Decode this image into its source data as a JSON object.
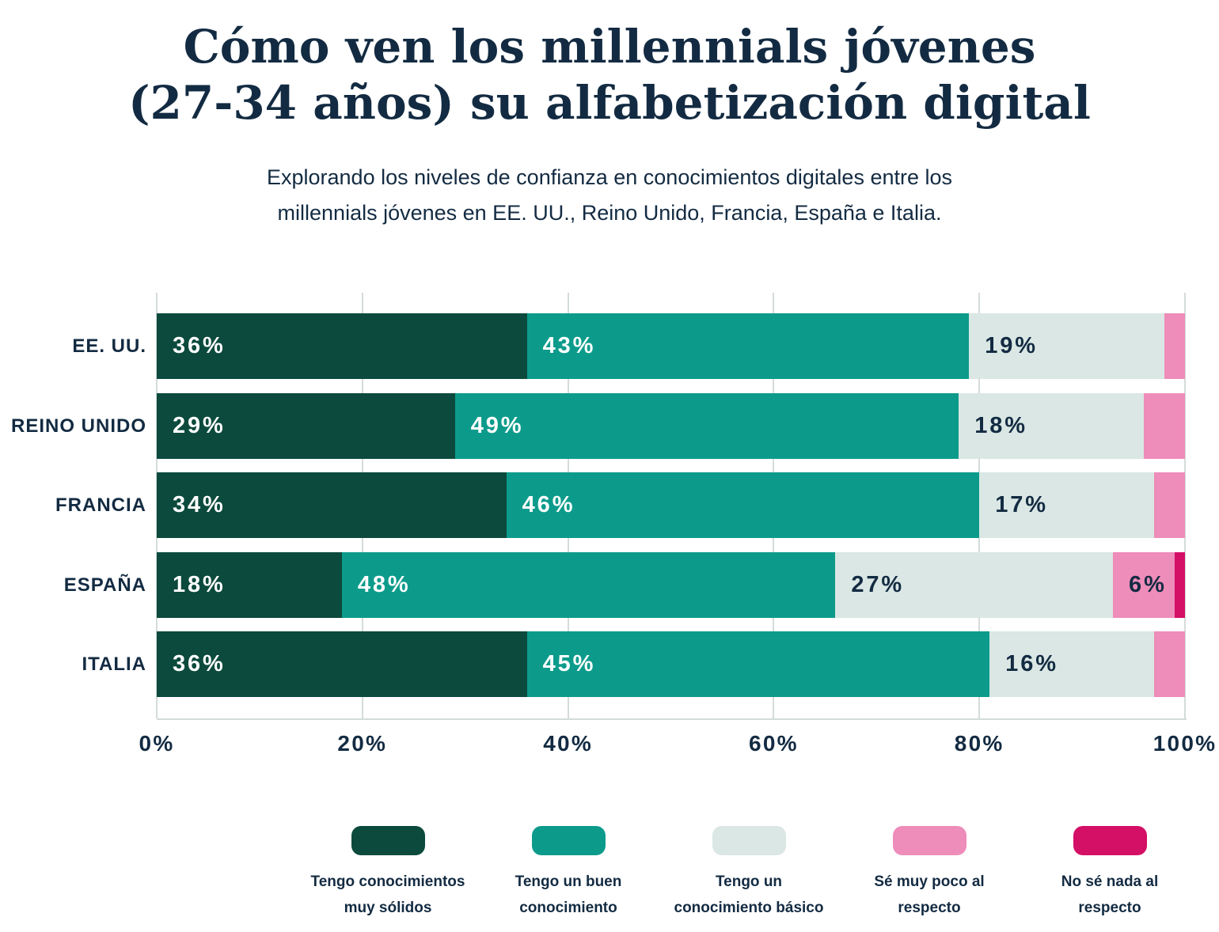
{
  "header": {
    "title_line1": "Cómo ven los millennials jóvenes",
    "title_line2": "(27-34 años) su alfabetización digital",
    "subtitle_line1": "Explorando los niveles de confianza en conocimientos digitales entre los",
    "subtitle_line2": "millennials jóvenes en EE. UU., Reino Unido, Francia, España e Italia."
  },
  "colors": {
    "background": "#ffffff",
    "text": "#132b42",
    "grid": "#d3dcd9",
    "series": [
      "#0b4a3c",
      "#0c9b8b",
      "#dae7e4",
      "#ee8cba",
      "#d40f66"
    ]
  },
  "chart_data": {
    "type": "bar",
    "orientation": "horizontal-stacked",
    "title": "Cómo ven los millennials jóvenes (27-34 años) su alfabetización digital",
    "subtitle": "Explorando los niveles de confianza en conocimientos digitales entre los millennials jóvenes en EE. UU., Reino Unido, Francia, España e Italia.",
    "categories": [
      "EE. UU.",
      "REINO UNIDO",
      "FRANCIA",
      "ESPAÑA",
      "ITALIA"
    ],
    "series": [
      {
        "name": "Tengo conocimientos muy sólidos",
        "color": "#0b4a3c",
        "label_color": "#ffffff",
        "values": [
          36,
          29,
          34,
          18,
          36
        ]
      },
      {
        "name": "Tengo un buen conocimiento",
        "color": "#0c9b8b",
        "label_color": "#ffffff",
        "values": [
          43,
          49,
          46,
          48,
          45
        ]
      },
      {
        "name": "Tengo un conocimiento básico",
        "color": "#dae7e4",
        "label_color": "#132b42",
        "values": [
          19,
          18,
          17,
          27,
          16
        ]
      },
      {
        "name": "Sé muy poco al respecto",
        "color": "#ee8cba",
        "label_color": "#132b42",
        "values": [
          2,
          4,
          3,
          6,
          3
        ]
      },
      {
        "name": "No sé nada al respecto",
        "color": "#d40f66",
        "label_color": "#ffffff",
        "values": [
          0,
          0,
          0,
          1,
          0
        ]
      }
    ],
    "x_ticks": [
      "0%",
      "20%",
      "40%",
      "60%",
      "80%",
      "100%"
    ],
    "xlim": [
      0,
      100
    ],
    "grid": true,
    "legend_position": "bottom",
    "label_min_value": 6,
    "value_suffix": "%"
  },
  "legend": {
    "items": [
      {
        "label_lines": [
          "Tengo conocimientos",
          "muy sólidos"
        ],
        "color": "#0b4a3c"
      },
      {
        "label_lines": [
          "Tengo un buen",
          "conocimiento"
        ],
        "color": "#0c9b8b"
      },
      {
        "label_lines": [
          "Tengo un",
          "conocimiento básico"
        ],
        "color": "#dae7e4"
      },
      {
        "label_lines": [
          "Sé muy poco al",
          "respecto"
        ],
        "color": "#ee8cba"
      },
      {
        "label_lines": [
          "No sé nada al",
          "respecto"
        ],
        "color": "#d40f66"
      }
    ]
  }
}
